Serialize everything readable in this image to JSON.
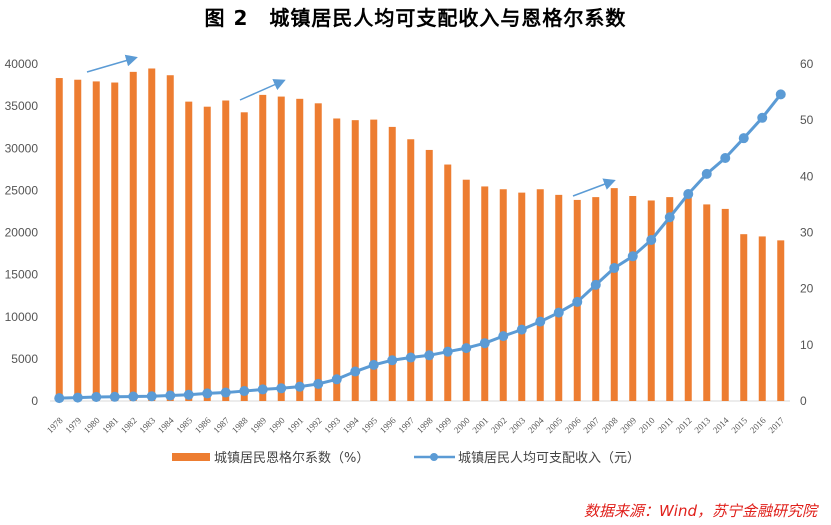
{
  "title": "图 2　城镇居民人均可支配收入与恩格尔系数",
  "source": "数据来源：Wind，苏宁金融研究院",
  "colors": {
    "bar": "#ed7d31",
    "line": "#5b9bd5",
    "source": "#e0201b"
  },
  "chart_data": {
    "type": "bar+line",
    "title": "图 2　城镇居民人均可支配收入与恩格尔系数",
    "categories": [
      "1978",
      "1979",
      "1980",
      "1981",
      "1982",
      "1983",
      "1984",
      "1985",
      "1986",
      "1987",
      "1988",
      "1989",
      "1990",
      "1991",
      "1992",
      "1993",
      "1994",
      "1995",
      "1996",
      "1997",
      "1998",
      "1999",
      "2000",
      "2001",
      "2002",
      "2003",
      "2004",
      "2005",
      "2006",
      "2007",
      "2008",
      "2009",
      "2010",
      "2011",
      "2012",
      "2013",
      "2014",
      "2015",
      "2016",
      "2017"
    ],
    "series": [
      {
        "name": "城镇居民恩格尔系数（%）",
        "type": "bar",
        "axis": "right",
        "values": [
          57.5,
          57.2,
          56.9,
          56.7,
          58.6,
          59.2,
          58.0,
          53.3,
          52.4,
          53.5,
          51.4,
          54.5,
          54.2,
          53.8,
          53.0,
          50.3,
          50.0,
          50.1,
          48.8,
          46.6,
          44.7,
          42.1,
          39.4,
          38.2,
          37.7,
          37.1,
          37.7,
          36.7,
          35.8,
          36.3,
          37.9,
          36.5,
          35.7,
          36.3,
          36.2,
          35.0,
          34.2,
          29.7,
          29.3,
          28.6
        ]
      },
      {
        "name": "城镇居民人均可支配收入（元）",
        "type": "line",
        "axis": "left",
        "values": [
          343,
          405,
          478,
          500,
          535,
          565,
          652,
          739,
          900,
          1002,
          1180,
          1374,
          1510,
          1701,
          2027,
          2577,
          3496,
          4283,
          4839,
          5160,
          5425,
          5854,
          6280,
          6860,
          7703,
          8472,
          9422,
          10493,
          11759,
          13786,
          15781,
          17175,
          19109,
          21810,
          24565,
          26955,
          28844,
          31195,
          33616,
          36396
        ]
      }
    ],
    "left_axis": {
      "range": [
        0,
        40000
      ],
      "ticks": [
        "0",
        "5000",
        "10000",
        "15000",
        "20000",
        "25000",
        "30000",
        "35000",
        "40000"
      ]
    },
    "right_axis": {
      "range": [
        0,
        60
      ],
      "ticks": [
        "0",
        "10",
        "20",
        "30",
        "40",
        "50",
        "60"
      ]
    },
    "grid": false,
    "legend_position": "bottom"
  }
}
